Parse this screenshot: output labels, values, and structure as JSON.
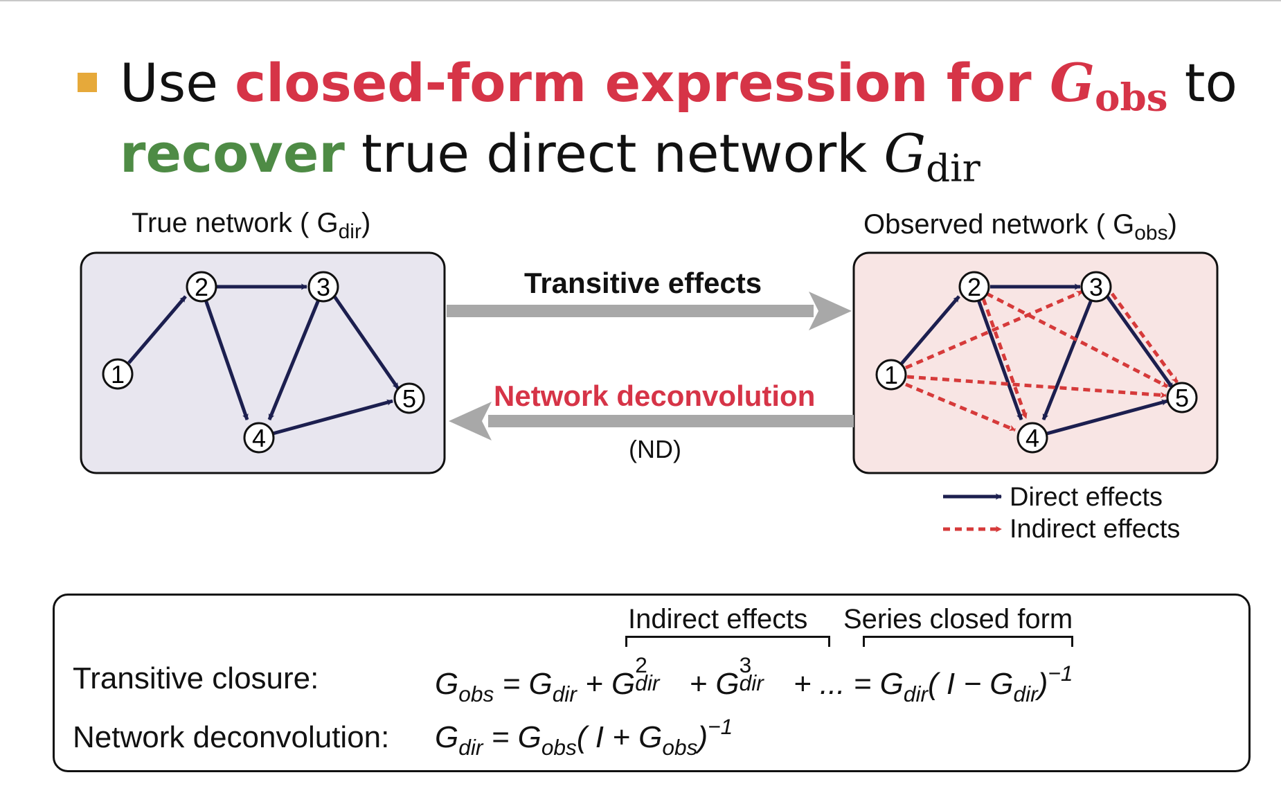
{
  "title": {
    "line1_prefix": "Use ",
    "line1_highlight": "closed-form expression for ",
    "line1_math_base": "G",
    "line1_math_sub": "obs",
    "line1_suffix": " to",
    "line2_highlight": "recover",
    "line2_text": " true direct network ",
    "line2_math_base": "G",
    "line2_math_sub": "dir"
  },
  "true_network": {
    "label_prefix": "True network ( G",
    "label_sub": "dir",
    "label_suffix": ")"
  },
  "observed_network": {
    "label_prefix": "Observed network ( G",
    "label_sub": "obs",
    "label_suffix": ")"
  },
  "arrows": {
    "forward_label": "Transitive effects",
    "backward_label": "Network deconvolution",
    "backward_sublabel": "(ND)"
  },
  "nodes": [
    "1",
    "2",
    "3",
    "4",
    "5"
  ],
  "direct_edges": [
    [
      "1",
      "2"
    ],
    [
      "2",
      "3"
    ],
    [
      "2",
      "4"
    ],
    [
      "3",
      "4"
    ],
    [
      "3",
      "5"
    ],
    [
      "4",
      "5"
    ]
  ],
  "indirect_edges": [
    [
      "1",
      "3"
    ],
    [
      "1",
      "4"
    ],
    [
      "1",
      "5"
    ],
    [
      "2",
      "4"
    ],
    [
      "2",
      "5"
    ],
    [
      "3",
      "5"
    ]
  ],
  "legend": {
    "direct": "Direct effects",
    "indirect": "Indirect effects"
  },
  "colors": {
    "accent_red": "#d63447",
    "accent_green": "#4e8b45",
    "bullet": "#e6a93a",
    "direct_edge": "#1c1f4f",
    "indirect_edge": "#d63a3a",
    "true_panel_bg": "#e8e6ef",
    "observed_panel_bg": "#f8e5e4",
    "transfer_arrow": "#a8a8a8"
  },
  "equations": {
    "indirect_label": "Indirect effects",
    "series_label": "Series closed form",
    "row1_label": "Transitive closure:",
    "row2_label": "Network deconvolution:"
  }
}
